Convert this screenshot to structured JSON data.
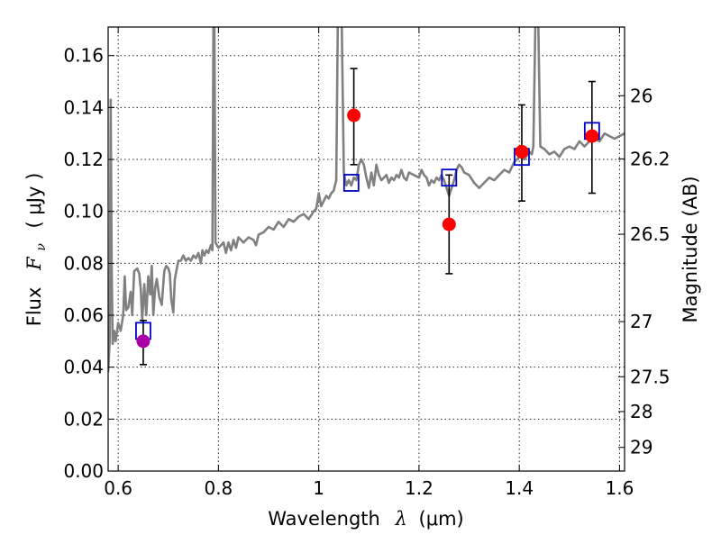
{
  "chart_data": {
    "type": "scatter",
    "xlabel": "Wavelength",
    "xlabel_symbol": "λ",
    "xlabel_unit": "(μm)",
    "ylabel": "Flux",
    "ylabel_symbol": "F",
    "ylabel_subscript": "ν",
    "ylabel_unit": "( μJy )",
    "y2label": "Magnitude (AB)",
    "xlim": [
      0.58,
      1.61
    ],
    "ylim": [
      0.0,
      0.171
    ],
    "grid": true,
    "x_ticks": [
      0.6,
      0.8,
      1.0,
      1.2,
      1.4,
      1.6
    ],
    "x_tick_labels": [
      "0.6",
      "0.8",
      "1",
      "1.2",
      "1.4",
      "1.6"
    ],
    "y_ticks": [
      0.0,
      0.02,
      0.04,
      0.06,
      0.08,
      0.1,
      0.12,
      0.14,
      0.16
    ],
    "y_tick_labels": [
      "0.00",
      "0.02",
      "0.04",
      "0.06",
      "0.08",
      "0.10",
      "0.12",
      "0.14",
      "0.16"
    ],
    "y2_ticks": [
      26,
      26.2,
      26.5,
      27,
      27.5,
      28,
      29
    ],
    "y2_tick_labels": [
      "26",
      "26.2",
      "26.5",
      "27",
      "27.5",
      "28",
      "29"
    ],
    "colors": {
      "spectrum": "#808080",
      "photometry": "#ff0000",
      "upper_point": "#aa00aa",
      "model": "#0000cc",
      "errorbar": "#000000"
    },
    "series": [
      {
        "kind": "line",
        "color": "#808080",
        "points": [
          [
            0.58,
            0.038
          ],
          [
            0.583,
            0.05
          ],
          [
            0.585,
            0.143
          ],
          [
            0.587,
            0.08
          ],
          [
            0.589,
            0.049
          ],
          [
            0.592,
            0.054
          ],
          [
            0.595,
            0.05
          ],
          [
            0.6,
            0.057
          ],
          [
            0.605,
            0.054
          ],
          [
            0.61,
            0.06
          ],
          [
            0.613,
            0.075
          ],
          [
            0.616,
            0.062
          ],
          [
            0.62,
            0.063
          ],
          [
            0.625,
            0.069
          ],
          [
            0.628,
            0.06
          ],
          [
            0.632,
            0.077
          ],
          [
            0.638,
            0.078
          ],
          [
            0.642,
            0.076
          ],
          [
            0.645,
            0.07
          ],
          [
            0.648,
            0.058
          ],
          [
            0.652,
            0.072
          ],
          [
            0.656,
            0.06
          ],
          [
            0.66,
            0.075
          ],
          [
            0.664,
            0.068
          ],
          [
            0.667,
            0.079
          ],
          [
            0.67,
            0.06
          ],
          [
            0.674,
            0.071
          ],
          [
            0.677,
            0.074
          ],
          [
            0.682,
            0.067
          ],
          [
            0.687,
            0.064
          ],
          [
            0.69,
            0.072
          ],
          [
            0.692,
            0.077
          ],
          [
            0.696,
            0.079
          ],
          [
            0.7,
            0.078
          ],
          [
            0.703,
            0.076
          ],
          [
            0.706,
            0.066
          ],
          [
            0.71,
            0.061
          ],
          [
            0.713,
            0.074
          ],
          [
            0.717,
            0.078
          ],
          [
            0.72,
            0.081
          ],
          [
            0.725,
            0.081
          ],
          [
            0.73,
            0.083
          ],
          [
            0.735,
            0.081
          ],
          [
            0.74,
            0.082
          ],
          [
            0.745,
            0.081
          ],
          [
            0.75,
            0.083
          ],
          [
            0.755,
            0.082
          ],
          [
            0.76,
            0.084
          ],
          [
            0.765,
            0.08
          ],
          [
            0.768,
            0.085
          ],
          [
            0.772,
            0.083
          ],
          [
            0.776,
            0.085
          ],
          [
            0.78,
            0.084
          ],
          [
            0.785,
            0.087
          ],
          [
            0.788,
            0.085
          ],
          [
            0.79,
            0.172
          ],
          [
            0.792,
            0.172
          ],
          [
            0.794,
            0.088
          ],
          [
            0.8,
            0.086
          ],
          [
            0.81,
            0.088
          ],
          [
            0.815,
            0.084
          ],
          [
            0.82,
            0.088
          ],
          [
            0.825,
            0.085
          ],
          [
            0.83,
            0.089
          ],
          [
            0.835,
            0.086
          ],
          [
            0.84,
            0.09
          ],
          [
            0.85,
            0.088
          ],
          [
            0.86,
            0.09
          ],
          [
            0.87,
            0.089
          ],
          [
            0.875,
            0.087
          ],
          [
            0.88,
            0.091
          ],
          [
            0.89,
            0.092
          ],
          [
            0.9,
            0.094
          ],
          [
            0.91,
            0.093
          ],
          [
            0.92,
            0.096
          ],
          [
            0.93,
            0.094
          ],
          [
            0.94,
            0.097
          ],
          [
            0.95,
            0.096
          ],
          [
            0.96,
            0.098
          ],
          [
            0.97,
            0.099
          ],
          [
            0.98,
            0.097
          ],
          [
            0.99,
            0.1
          ],
          [
            0.995,
            0.101
          ],
          [
            1.0,
            0.107
          ],
          [
            1.005,
            0.102
          ],
          [
            1.01,
            0.104
          ],
          [
            1.015,
            0.106
          ],
          [
            1.02,
            0.105
          ],
          [
            1.025,
            0.107
          ],
          [
            1.03,
            0.108
          ],
          [
            1.035,
            0.112
          ],
          [
            1.038,
            0.172
          ],
          [
            1.046,
            0.172
          ],
          [
            1.05,
            0.115
          ],
          [
            1.055,
            0.11
          ],
          [
            1.06,
            0.112
          ],
          [
            1.065,
            0.11
          ],
          [
            1.07,
            0.113
          ],
          [
            1.075,
            0.112
          ],
          [
            1.08,
            0.118
          ],
          [
            1.085,
            0.12
          ],
          [
            1.09,
            0.118
          ],
          [
            1.095,
            0.113
          ],
          [
            1.1,
            0.109
          ],
          [
            1.105,
            0.115
          ],
          [
            1.11,
            0.11
          ],
          [
            1.115,
            0.118
          ],
          [
            1.12,
            0.114
          ],
          [
            1.125,
            0.112
          ],
          [
            1.13,
            0.113
          ],
          [
            1.135,
            0.114
          ],
          [
            1.14,
            0.111
          ],
          [
            1.145,
            0.113
          ],
          [
            1.15,
            0.112
          ],
          [
            1.155,
            0.114
          ],
          [
            1.16,
            0.113
          ],
          [
            1.165,
            0.116
          ],
          [
            1.17,
            0.113
          ],
          [
            1.175,
            0.112
          ],
          [
            1.18,
            0.115
          ],
          [
            1.19,
            0.114
          ],
          [
            1.2,
            0.113
          ],
          [
            1.205,
            0.116
          ],
          [
            1.21,
            0.114
          ],
          [
            1.215,
            0.113
          ],
          [
            1.22,
            0.11
          ],
          [
            1.225,
            0.112
          ],
          [
            1.23,
            0.111
          ],
          [
            1.235,
            0.113
          ],
          [
            1.24,
            0.112
          ],
          [
            1.245,
            0.114
          ],
          [
            1.25,
            0.112
          ],
          [
            1.255,
            0.109
          ],
          [
            1.26,
            0.106
          ],
          [
            1.265,
            0.109
          ],
          [
            1.27,
            0.112
          ],
          [
            1.275,
            0.116
          ],
          [
            1.28,
            0.118
          ],
          [
            1.285,
            0.117
          ],
          [
            1.29,
            0.115
          ],
          [
            1.3,
            0.114
          ],
          [
            1.31,
            0.111
          ],
          [
            1.32,
            0.109
          ],
          [
            1.33,
            0.111
          ],
          [
            1.34,
            0.113
          ],
          [
            1.35,
            0.112
          ],
          [
            1.36,
            0.114
          ],
          [
            1.37,
            0.116
          ],
          [
            1.38,
            0.115
          ],
          [
            1.39,
            0.119
          ],
          [
            1.4,
            0.121
          ],
          [
            1.41,
            0.12
          ],
          [
            1.42,
            0.123
          ],
          [
            1.425,
            0.122
          ],
          [
            1.428,
            0.125
          ],
          [
            1.432,
            0.172
          ],
          [
            1.438,
            0.172
          ],
          [
            1.442,
            0.125
          ],
          [
            1.45,
            0.124
          ],
          [
            1.46,
            0.122
          ],
          [
            1.47,
            0.123
          ],
          [
            1.48,
            0.121
          ],
          [
            1.49,
            0.124
          ],
          [
            1.5,
            0.125
          ],
          [
            1.51,
            0.124
          ],
          [
            1.52,
            0.127
          ],
          [
            1.525,
            0.126
          ],
          [
            1.53,
            0.125
          ],
          [
            1.54,
            0.127
          ],
          [
            1.55,
            0.128
          ],
          [
            1.56,
            0.127
          ],
          [
            1.57,
            0.13
          ],
          [
            1.58,
            0.129
          ],
          [
            1.59,
            0.128
          ],
          [
            1.6,
            0.129
          ],
          [
            1.61,
            0.13
          ]
        ]
      },
      {
        "kind": "points",
        "color": "#ff0000",
        "points": [
          {
            "x": 1.07,
            "y": 0.137,
            "yerr_lo": 0.118,
            "yerr_hi": 0.155
          },
          {
            "x": 1.26,
            "y": 0.095,
            "yerr_lo": 0.076,
            "yerr_hi": 0.114
          },
          {
            "x": 1.405,
            "y": 0.123,
            "yerr_lo": 0.104,
            "yerr_hi": 0.141
          },
          {
            "x": 1.545,
            "y": 0.129,
            "yerr_lo": 0.107,
            "yerr_hi": 0.15
          }
        ]
      },
      {
        "kind": "points",
        "color": "#aa00aa",
        "points": [
          {
            "x": 0.65,
            "y": 0.05,
            "yerr_lo": 0.041,
            "yerr_hi": 0.058
          }
        ]
      },
      {
        "kind": "boxes",
        "color": "#0000cc",
        "points": [
          {
            "x": 0.65,
            "y": 0.054
          },
          {
            "x": 1.065,
            "y": 0.111
          },
          {
            "x": 1.26,
            "y": 0.113
          },
          {
            "x": 1.405,
            "y": 0.121
          },
          {
            "x": 1.545,
            "y": 0.131
          }
        ]
      }
    ]
  }
}
